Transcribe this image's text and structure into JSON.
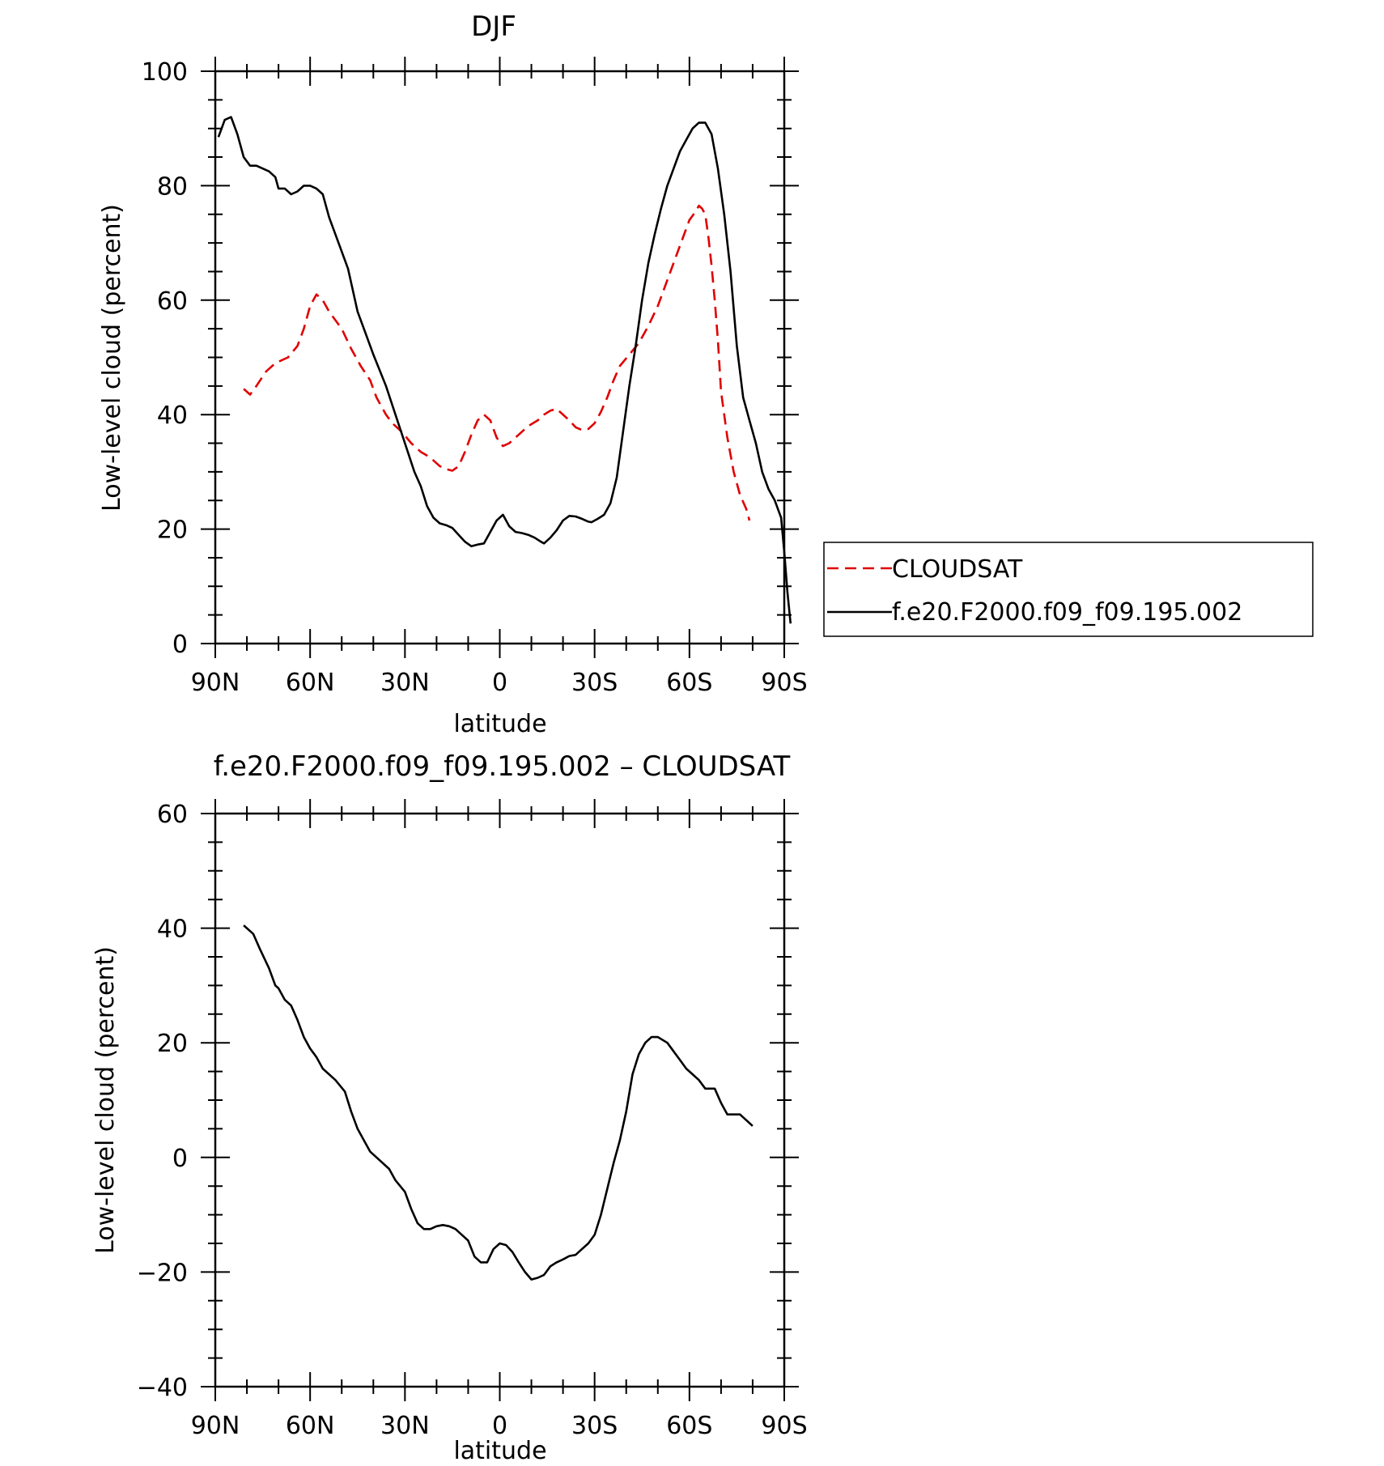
{
  "chart_data": [
    {
      "type": "line",
      "title": "DJF",
      "xlabel": "latitude",
      "ylabel": "Low-level cloud (percent)",
      "xlim": [
        90,
        -90
      ],
      "ylim": [
        0,
        100
      ],
      "x_ticks": [
        {
          "value": 90,
          "label": "90N"
        },
        {
          "value": 60,
          "label": "60N"
        },
        {
          "value": 30,
          "label": "30N"
        },
        {
          "value": 0,
          "label": "0"
        },
        {
          "value": -30,
          "label": "30S"
        },
        {
          "value": -60,
          "label": "60S"
        },
        {
          "value": -90,
          "label": "90S"
        }
      ],
      "y_ticks": [
        0,
        20,
        40,
        60,
        80,
        100
      ],
      "legend_position": "right",
      "series": [
        {
          "name": "CLOUDSAT",
          "color": "#e00000",
          "dash": true,
          "points": [
            [
              81,
              44.5
            ],
            [
              79,
              43.5
            ],
            [
              77,
              45
            ],
            [
              74,
              47.5
            ],
            [
              71,
              49
            ],
            [
              67,
              50
            ],
            [
              64,
              52
            ],
            [
              62,
              55
            ],
            [
              60,
              59
            ],
            [
              58,
              61
            ],
            [
              56,
              60
            ],
            [
              54,
              58
            ],
            [
              50,
              55
            ],
            [
              47,
              51.5
            ],
            [
              44,
              48.5
            ],
            [
              41,
              46
            ],
            [
              39,
              43
            ],
            [
              36,
              40
            ],
            [
              34,
              38.5
            ],
            [
              31,
              37
            ],
            [
              28,
              35
            ],
            [
              25,
              33.5
            ],
            [
              22,
              32.5
            ],
            [
              19,
              31
            ],
            [
              17,
              30.5
            ],
            [
              15,
              30.2
            ],
            [
              13,
              31
            ],
            [
              11,
              33.5
            ],
            [
              9,
              36.5
            ],
            [
              7,
              39
            ],
            [
              5,
              40
            ],
            [
              3,
              39
            ],
            [
              1,
              36
            ],
            [
              -1,
              34.5
            ],
            [
              -3,
              35
            ],
            [
              -5,
              36
            ],
            [
              -7,
              37
            ],
            [
              -9,
              38
            ],
            [
              -12,
              39
            ],
            [
              -14,
              40
            ],
            [
              -16,
              40.7
            ],
            [
              -18,
              41
            ],
            [
              -20,
              40
            ],
            [
              -22,
              39
            ],
            [
              -24,
              37.8
            ],
            [
              -26,
              37.3
            ],
            [
              -28,
              37.5
            ],
            [
              -30,
              38.5
            ],
            [
              -32,
              40.5
            ],
            [
              -34,
              43
            ],
            [
              -36,
              46
            ],
            [
              -38,
              48.5
            ],
            [
              -41,
              50.5
            ],
            [
              -44,
              52.5
            ],
            [
              -47,
              55.5
            ],
            [
              -50,
              59
            ],
            [
              -53,
              63.5
            ],
            [
              -56,
              68
            ],
            [
              -58,
              71
            ],
            [
              -60,
              74
            ],
            [
              -62,
              75.5
            ],
            [
              -63,
              76.5
            ],
            [
              -64,
              76
            ],
            [
              -65,
              75
            ],
            [
              -66,
              71
            ],
            [
              -67,
              66
            ],
            [
              -68,
              60
            ],
            [
              -69,
              53
            ],
            [
              -70,
              44
            ],
            [
              -72,
              36
            ],
            [
              -74,
              30
            ],
            [
              -76,
              26
            ],
            [
              -78,
              23.5
            ],
            [
              -79,
              21.5
            ]
          ]
        },
        {
          "name": "f.e20.F2000.f09_f09.195.002",
          "color": "#000000",
          "dash": false,
          "points": [
            [
              89,
              88.5
            ],
            [
              87,
              91.5
            ],
            [
              85,
              92
            ],
            [
              83,
              89
            ],
            [
              81,
              85
            ],
            [
              79,
              83.5
            ],
            [
              77,
              83.5
            ],
            [
              75,
              83
            ],
            [
              73,
              82.5
            ],
            [
              71,
              81.5
            ],
            [
              70,
              79.5
            ],
            [
              68,
              79.5
            ],
            [
              66,
              78.5
            ],
            [
              64,
              79
            ],
            [
              62,
              80
            ],
            [
              60,
              80
            ],
            [
              58,
              79.5
            ],
            [
              56,
              78.5
            ],
            [
              54,
              74.5
            ],
            [
              51,
              70
            ],
            [
              48,
              65.5
            ],
            [
              45,
              58
            ],
            [
              43,
              55
            ],
            [
              40,
              50.5
            ],
            [
              36,
              45
            ],
            [
              33,
              40
            ],
            [
              30,
              35
            ],
            [
              27,
              30
            ],
            [
              25,
              27.5
            ],
            [
              23,
              24
            ],
            [
              21,
              22
            ],
            [
              19,
              21
            ],
            [
              17,
              20.7
            ],
            [
              15,
              20.2
            ],
            [
              13,
              19
            ],
            [
              11,
              17.8
            ],
            [
              9,
              17
            ],
            [
              7,
              17.3
            ],
            [
              5,
              17.5
            ],
            [
              3,
              19.5
            ],
            [
              1,
              21.5
            ],
            [
              -1,
              22.5
            ],
            [
              -3,
              20.5
            ],
            [
              -5,
              19.5
            ],
            [
              -7,
              19.3
            ],
            [
              -9,
              19
            ],
            [
              -11,
              18.5
            ],
            [
              -13,
              17.8
            ],
            [
              -14,
              17.5
            ],
            [
              -16,
              18.5
            ],
            [
              -18,
              19.8
            ],
            [
              -20,
              21.5
            ],
            [
              -22,
              22.3
            ],
            [
              -24,
              22.2
            ],
            [
              -26,
              21.8
            ],
            [
              -28,
              21.3
            ],
            [
              -29,
              21.2
            ],
            [
              -31,
              21.8
            ],
            [
              -33,
              22.5
            ],
            [
              -35,
              24.5
            ],
            [
              -37,
              29
            ],
            [
              -39,
              37
            ],
            [
              -41,
              45
            ],
            [
              -43,
              52
            ],
            [
              -45,
              60
            ],
            [
              -47,
              66.5
            ],
            [
              -49,
              71.5
            ],
            [
              -51,
              76
            ],
            [
              -53,
              80
            ],
            [
              -55,
              83
            ],
            [
              -57,
              86
            ],
            [
              -59,
              88
            ],
            [
              -61,
              90
            ],
            [
              -63,
              91
            ],
            [
              -65,
              91
            ],
            [
              -67,
              89
            ],
            [
              -69,
              83
            ],
            [
              -71,
              75
            ],
            [
              -73,
              65
            ],
            [
              -75,
              52
            ],
            [
              -77,
              43
            ],
            [
              -79,
              39
            ],
            [
              -81,
              35
            ],
            [
              -83,
              30
            ],
            [
              -85,
              27
            ],
            [
              -87,
              25
            ],
            [
              -89,
              22
            ],
            [
              -90,
              16
            ],
            [
              -91,
              9
            ],
            [
              -92,
              3.5
            ]
          ]
        }
      ]
    },
    {
      "type": "line",
      "title": "f.e20.F2000.f09_f09.195.002 – CLOUDSAT",
      "xlabel": "latitude",
      "ylabel": "Low-level cloud (percent)",
      "xlim": [
        90,
        -90
      ],
      "ylim": [
        -40,
        60
      ],
      "x_ticks": [
        {
          "value": 90,
          "label": "90N"
        },
        {
          "value": 60,
          "label": "60N"
        },
        {
          "value": 30,
          "label": "30N"
        },
        {
          "value": 0,
          "label": "0"
        },
        {
          "value": -30,
          "label": "30S"
        },
        {
          "value": -60,
          "label": "60S"
        },
        {
          "value": -90,
          "label": "90S"
        }
      ],
      "y_ticks": [
        -40,
        -20,
        0,
        20,
        40,
        60
      ],
      "series": [
        {
          "color": "#000000",
          "dash": false,
          "points": [
            [
              81,
              40.5
            ],
            [
              78,
              39
            ],
            [
              76,
              36.5
            ],
            [
              73,
              33
            ],
            [
              71,
              30
            ],
            [
              70,
              29.5
            ],
            [
              68,
              27.5
            ],
            [
              66,
              26.5
            ],
            [
              64,
              24
            ],
            [
              62,
              21
            ],
            [
              60,
              19
            ],
            [
              58,
              17.5
            ],
            [
              56,
              15.5
            ],
            [
              52,
              13.5
            ],
            [
              49,
              11.5
            ],
            [
              47,
              8
            ],
            [
              45,
              5
            ],
            [
              43,
              3
            ],
            [
              41,
              1
            ],
            [
              38,
              -0.5
            ],
            [
              35,
              -2
            ],
            [
              33,
              -4
            ],
            [
              30,
              -6
            ],
            [
              28,
              -9
            ],
            [
              26,
              -11.5
            ],
            [
              24,
              -12.5
            ],
            [
              22,
              -12.5
            ],
            [
              20,
              -12
            ],
            [
              18,
              -11.8
            ],
            [
              16,
              -12
            ],
            [
              14,
              -12.5
            ],
            [
              12,
              -13.5
            ],
            [
              10,
              -14.5
            ],
            [
              8,
              -17.3
            ],
            [
              6,
              -18.3
            ],
            [
              4,
              -18.3
            ],
            [
              2,
              -16
            ],
            [
              0,
              -15
            ],
            [
              -2,
              -15.3
            ],
            [
              -4,
              -16.5
            ],
            [
              -6,
              -18.3
            ],
            [
              -8,
              -20
            ],
            [
              -10,
              -21.3
            ],
            [
              -12,
              -21
            ],
            [
              -14,
              -20.5
            ],
            [
              -16,
              -19
            ],
            [
              -18,
              -18.3
            ],
            [
              -20,
              -17.8
            ],
            [
              -22,
              -17.2
            ],
            [
              -24,
              -17
            ],
            [
              -26,
              -16
            ],
            [
              -28,
              -15
            ],
            [
              -30,
              -13.5
            ],
            [
              -32,
              -10
            ],
            [
              -34,
              -5.5
            ],
            [
              -36,
              -1
            ],
            [
              -38,
              3
            ],
            [
              -40,
              8
            ],
            [
              -42,
              14.5
            ],
            [
              -44,
              18
            ],
            [
              -46,
              20
            ],
            [
              -48,
              21
            ],
            [
              -50,
              21
            ],
            [
              -53,
              20
            ],
            [
              -55,
              18.5
            ],
            [
              -57,
              17
            ],
            [
              -59,
              15.5
            ],
            [
              -61,
              14.5
            ],
            [
              -63,
              13.5
            ],
            [
              -65,
              12
            ],
            [
              -67,
              12
            ],
            [
              -68,
              12
            ],
            [
              -70,
              9.5
            ],
            [
              -72,
              7.5
            ],
            [
              -74,
              7.5
            ],
            [
              -76,
              7.5
            ],
            [
              -78,
              6.5
            ],
            [
              -80,
              5.5
            ]
          ]
        }
      ]
    }
  ]
}
